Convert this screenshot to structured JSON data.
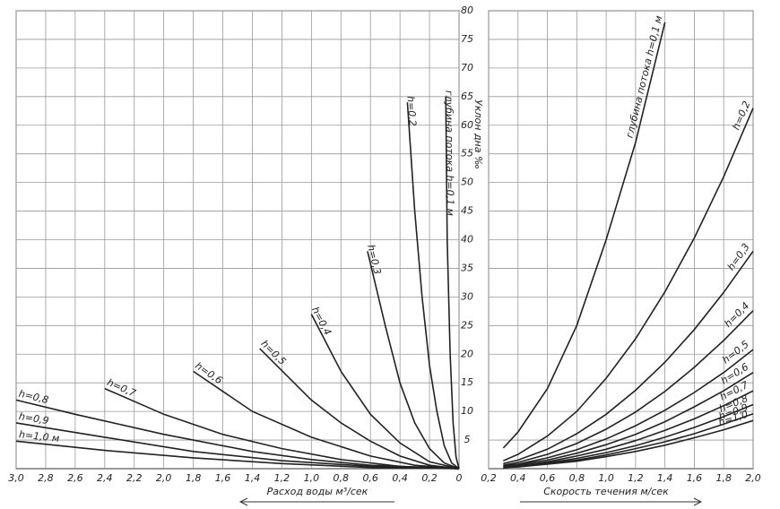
{
  "chart_data": [
    {
      "type": "line",
      "x_label": "Расход воды м³/сек",
      "y_label": "Уклон дна ‰",
      "color": "#222222",
      "grid": true,
      "xlim": [
        3.0,
        0
      ],
      "ylim": [
        0,
        80
      ],
      "xticks": [
        {
          "value": 3.0,
          "label": "3,0"
        },
        {
          "value": 2.8,
          "label": "2,8"
        },
        {
          "value": 2.6,
          "label": "2,6"
        },
        {
          "value": 2.4,
          "label": "2,4"
        },
        {
          "value": 2.2,
          "label": "2,2"
        },
        {
          "value": 2.0,
          "label": "2,0"
        },
        {
          "value": 1.8,
          "label": "1,8"
        },
        {
          "value": 1.6,
          "label": "1,6"
        },
        {
          "value": 1.4,
          "label": "1,4"
        },
        {
          "value": 1.2,
          "label": "1,2"
        },
        {
          "value": 1.0,
          "label": "1,0"
        },
        {
          "value": 0.8,
          "label": "0,8"
        },
        {
          "value": 0.6,
          "label": "0,6"
        },
        {
          "value": 0.4,
          "label": "0,4"
        },
        {
          "value": 0.2,
          "label": "0,2"
        },
        0
      ],
      "yticks": [
        5,
        10,
        15,
        20,
        25,
        30,
        35,
        40,
        45,
        50,
        55,
        60,
        65,
        70,
        75,
        80
      ],
      "series": [
        {
          "name": "глубина потока h=0,1 м",
          "x": [
            0.09,
            0.08,
            0.06,
            0.04,
            0.02,
            0
          ],
          "values": [
            65,
            40,
            20,
            8,
            2,
            0
          ]
        },
        {
          "name": "h=0,2",
          "x": [
            0.35,
            0.3,
            0.25,
            0.2,
            0.15,
            0.1,
            0.05,
            0
          ],
          "values": [
            64,
            45,
            30,
            18,
            10,
            4,
            1,
            0
          ]
        },
        {
          "name": "h=0,3",
          "x": [
            0.62,
            0.5,
            0.4,
            0.3,
            0.2,
            0.1,
            0
          ],
          "values": [
            38,
            25,
            15,
            8,
            3.5,
            1,
            0
          ]
        },
        {
          "name": "h=0,4",
          "x": [
            1.0,
            0.8,
            0.6,
            0.4,
            0.2,
            0
          ],
          "values": [
            27,
            17,
            9.5,
            4.5,
            1.2,
            0
          ]
        },
        {
          "name": "h=0,5",
          "x": [
            1.35,
            1.0,
            0.8,
            0.6,
            0.4,
            0.2,
            0
          ],
          "values": [
            21,
            12,
            8,
            4.8,
            2.2,
            0.6,
            0
          ]
        },
        {
          "name": "h=0,6",
          "x": [
            1.8,
            1.4,
            1.0,
            0.6,
            0.3,
            0
          ],
          "values": [
            17,
            10,
            5.5,
            2.2,
            0.6,
            0
          ]
        },
        {
          "name": "h=0,7",
          "x": [
            2.4,
            2.0,
            1.6,
            1.2,
            0.8,
            0.4,
            0
          ],
          "values": [
            14,
            9.5,
            6,
            3.5,
            1.6,
            0.4,
            0
          ]
        },
        {
          "name": "h=0,8",
          "x": [
            3.0,
            2.6,
            2.0,
            1.4,
            1.0,
            0.6,
            0
          ],
          "values": [
            12,
            9.5,
            6,
            3,
            1.6,
            0.6,
            0
          ]
        },
        {
          "name": "h=0,9",
          "x": [
            3.0,
            2.4,
            1.8,
            1.2,
            0.6,
            0
          ],
          "values": [
            8,
            5.5,
            3,
            1.4,
            0.4,
            0
          ]
        },
        {
          "name": "h=1,0 м",
          "x": [
            3.0,
            2.4,
            1.8,
            1.2,
            0.6,
            0
          ],
          "values": [
            4.8,
            3.2,
            1.9,
            0.9,
            0.2,
            0
          ]
        }
      ]
    },
    {
      "type": "line",
      "x_label": "Скорость течения м/сек",
      "color": "#222222",
      "grid": true,
      "xlim": [
        0.2,
        2.0
      ],
      "ylim": [
        0,
        80
      ],
      "xticks": [
        {
          "value": 0.2,
          "label": "0,2"
        },
        {
          "value": 0.4,
          "label": "0,4"
        },
        {
          "value": 0.6,
          "label": "0,6"
        },
        {
          "value": 0.8,
          "label": "0,8"
        },
        {
          "value": 1.0,
          "label": "1,0"
        },
        {
          "value": 1.2,
          "label": "1,2"
        },
        {
          "value": 1.4,
          "label": "1,4"
        },
        {
          "value": 1.6,
          "label": "1,6"
        },
        {
          "value": 1.8,
          "label": "1,8"
        },
        {
          "value": 2.0,
          "label": "2,0"
        }
      ],
      "yticks": [
        5,
        10,
        15,
        20,
        25,
        30,
        35,
        40,
        45,
        50,
        55,
        60,
        65,
        70,
        75,
        80
      ],
      "x": [
        0.3,
        0.4,
        0.6,
        0.8,
        1.0,
        1.2,
        1.4,
        1.6,
        1.8,
        2.0
      ],
      "series": [
        {
          "name": "глубина потока h=0,1 м",
          "values": [
            3.6,
            6.4,
            14,
            25,
            40,
            57,
            78,
            null,
            null,
            null
          ]
        },
        {
          "name": "h=0,2",
          "values": [
            1.4,
            2.5,
            5.7,
            10,
            15.8,
            22.7,
            30.9,
            40.3,
            51,
            63
          ]
        },
        {
          "name": "h=0,3",
          "values": [
            0.9,
            1.5,
            3.4,
            6.1,
            9.5,
            13.7,
            18.6,
            24.3,
            30.8,
            38
          ]
        },
        {
          "name": "h=0,4",
          "values": [
            0.6,
            1.1,
            2.5,
            4.4,
            6.9,
            9.9,
            13.5,
            17.7,
            22.4,
            27.6
          ]
        },
        {
          "name": "h=0,5",
          "values": [
            0.5,
            0.8,
            1.9,
            3.3,
            5.2,
            7.5,
            10.2,
            13.3,
            16.8,
            20.8
          ]
        },
        {
          "name": "h=0,6",
          "values": [
            0.4,
            0.7,
            1.5,
            2.7,
            4.2,
            6,
            8.2,
            10.8,
            13.6,
            16.8
          ]
        },
        {
          "name": "h=0,7",
          "values": [
            0.3,
            0.5,
            1.2,
            2.2,
            3.4,
            4.9,
            6.7,
            8.7,
            11,
            13.6
          ]
        },
        {
          "name": "h=0,8",
          "values": [
            0.3,
            0.4,
            1,
            1.8,
            2.8,
            4,
            5.5,
            7.2,
            9.1,
            11.2
          ]
        },
        {
          "name": "h=0,9",
          "values": [
            0.2,
            0.4,
            0.9,
            1.5,
            2.4,
            3.5,
            4.7,
            6.1,
            7.8,
            9.6
          ]
        },
        {
          "name": "h=1,0",
          "values": [
            0.2,
            0.3,
            0.8,
            1.3,
            2.1,
            3,
            4.1,
            5.4,
            6.8,
            8.4
          ]
        }
      ]
    }
  ]
}
